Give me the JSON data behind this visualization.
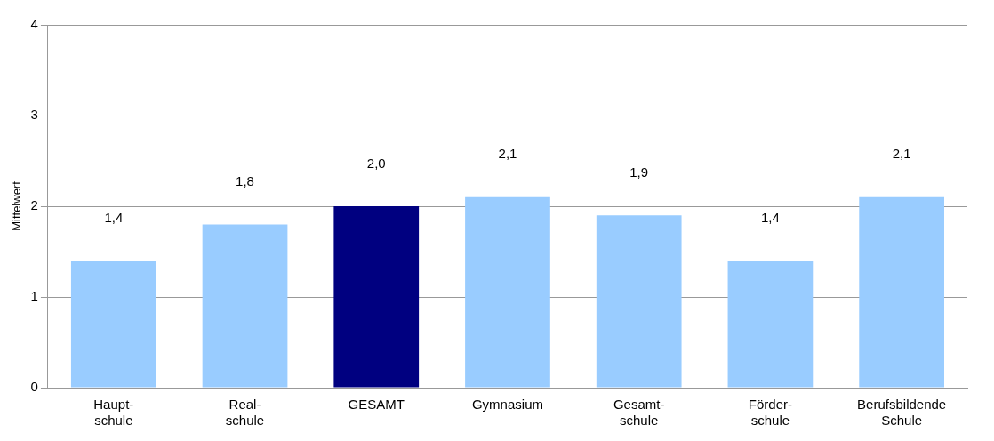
{
  "chart_data": {
    "type": "bar",
    "ylabel": "Mittelwert",
    "categories": [
      "Haupt-\nschule",
      "Real-\nschule",
      "GESAMT",
      "Gymnasium",
      "Gesamt-\nschule",
      "Förder-\nschule",
      "Berufsbildende\nSchule"
    ],
    "values": [
      1.4,
      1.8,
      2.0,
      2.1,
      1.9,
      1.4,
      2.1
    ],
    "colors": [
      "#99ccff",
      "#99ccff",
      "#000080",
      "#99ccff",
      "#99ccff",
      "#99ccff",
      "#99ccff"
    ],
    "value_labels": [
      "1,4",
      "1,8",
      "2,0",
      "2,1",
      "1,9",
      "1,4",
      "2,1"
    ],
    "ylim": [
      0,
      4
    ],
    "yticks": [
      0,
      1,
      2,
      3,
      4
    ],
    "grid": "y",
    "legend": false
  }
}
